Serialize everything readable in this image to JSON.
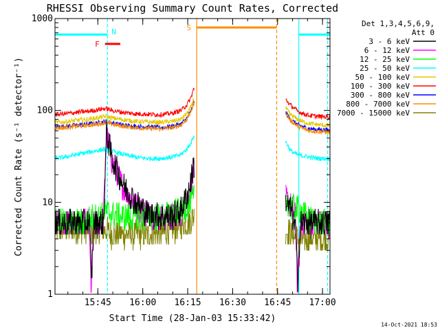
{
  "chart_data": {
    "type": "line",
    "title": "RHESSI Observing Summary Count Rates, Corrected",
    "xlabel": "Start Time (28-Jan-03 15:33:42)",
    "ylabel": "Corrected Count Rate (s⁻¹ detector⁻¹)",
    "xlim_minutes": [
      7.0,
      98.8
    ],
    "ylim": [
      1,
      1000
    ],
    "yscale": "log",
    "grid": false,
    "legend_position": "top-right",
    "x_ticks": [
      {
        "t": 21.3,
        "label": "15:45"
      },
      {
        "t": 36.3,
        "label": "16:00"
      },
      {
        "t": 51.3,
        "label": "16:15"
      },
      {
        "t": 66.3,
        "label": "16:30"
      },
      {
        "t": 81.3,
        "label": "16:45"
      },
      {
        "t": 96.3,
        "label": "17:00"
      }
    ],
    "y_ticks": [
      {
        "v": 1,
        "label": "1"
      },
      {
        "v": 10,
        "label": "10"
      },
      {
        "v": 100,
        "label": "100"
      },
      {
        "v": 1000,
        "label": "1000"
      }
    ],
    "legend_header": [
      "Det 1,3,4,5,6,9,",
      "Att 0"
    ],
    "data_gap_minutes": [
      53.5,
      84.0
    ],
    "series": [
      {
        "name": "3 - 6 keV",
        "color": "#000000",
        "t": [
          7,
          12,
          16,
          18.5,
          19.2,
          20,
          22,
          23.2,
          24.2,
          26,
          30,
          34,
          38,
          42,
          46,
          49,
          51.5,
          52.5,
          53.2,
          84.2,
          85,
          86,
          87.3,
          88,
          89,
          90,
          92,
          95,
          98.8
        ],
        "v": [
          6,
          6,
          6,
          6,
          1.5,
          6,
          6,
          6,
          60,
          30,
          15,
          10,
          7.5,
          7,
          7,
          8,
          13,
          18,
          25,
          10,
          9,
          8,
          5,
          1.5,
          6,
          6,
          6,
          6,
          6
        ]
      },
      {
        "name": "6 - 12 keV",
        "color": "#ff00ff",
        "t": [
          7,
          12,
          16,
          18.5,
          19,
          20,
          22,
          23.2,
          24.2,
          26,
          30,
          34,
          38,
          42,
          46,
          49,
          51.5,
          52.5,
          53.2,
          84.2,
          85,
          86,
          87.3,
          88,
          89,
          90,
          92,
          95,
          98.8
        ],
        "v": [
          6,
          6,
          6,
          6,
          1,
          6,
          6,
          7,
          55,
          28,
          14,
          9,
          7.5,
          7,
          7,
          7.5,
          11,
          16,
          22,
          11,
          10,
          9,
          7,
          1,
          6,
          6,
          6,
          6,
          6
        ]
      },
      {
        "name": "12 - 25 keV",
        "color": "#00ff00",
        "t": [
          7,
          12,
          16,
          20,
          22,
          24,
          26,
          30,
          34,
          38,
          42,
          46,
          49,
          51.5,
          53,
          84.2,
          86,
          88,
          90,
          92,
          95,
          98.8
        ],
        "v": [
          6,
          6,
          6,
          7,
          7,
          8,
          7.5,
          7,
          7,
          7,
          7,
          7.5,
          8,
          9,
          11,
          10,
          9,
          8.5,
          7.5,
          6.5,
          6,
          6
        ]
      },
      {
        "name": "25 - 50 keV",
        "color": "#00ffff",
        "t": [
          7,
          10,
          14,
          18,
          20,
          22,
          24,
          26,
          30,
          34,
          38,
          42,
          46,
          49,
          51,
          52.5,
          53.2,
          84.2,
          85.5,
          87,
          88,
          90,
          92,
          95,
          98.8
        ],
        "v": [
          30,
          31,
          33,
          35,
          36,
          37,
          38,
          36,
          33,
          31,
          30,
          30,
          31,
          33,
          38,
          45,
          52,
          45,
          37,
          34,
          33,
          32,
          31,
          30,
          30
        ]
      },
      {
        "name": "50 - 100 keV",
        "color": "#e6c800",
        "t": [
          7,
          10,
          14,
          18,
          20,
          22,
          24,
          26,
          30,
          34,
          38,
          42,
          46,
          49,
          51,
          52.5,
          53.2,
          84.2,
          85.5,
          87,
          88,
          90,
          92,
          95,
          98.8
        ],
        "v": [
          74,
          75,
          78,
          80,
          82,
          84,
          86,
          83,
          79,
          76,
          75,
          74,
          76,
          80,
          92,
          110,
          135,
          105,
          90,
          84,
          80,
          75,
          72,
          70,
          68
        ]
      },
      {
        "name": "100 - 300 keV",
        "color": "#ff0000",
        "t": [
          7,
          10,
          14,
          18,
          20,
          22,
          24,
          26,
          30,
          34,
          38,
          42,
          46,
          49,
          51,
          52.5,
          53.2,
          84.2,
          85.5,
          87,
          88,
          90,
          92,
          95,
          98.8
        ],
        "v": [
          90,
          92,
          95,
          98,
          100,
          103,
          105,
          100,
          95,
          92,
          91,
          90,
          93,
          100,
          115,
          140,
          170,
          130,
          115,
          105,
          98,
          92,
          88,
          86,
          85
        ]
      },
      {
        "name": "300 - 800 keV",
        "color": "#0000ff",
        "t": [
          7,
          10,
          14,
          18,
          20,
          22,
          24,
          26,
          30,
          34,
          38,
          42,
          46,
          49,
          51,
          52.5,
          53.2,
          84.2,
          85.5,
          87,
          88,
          90,
          92,
          95,
          98.8
        ],
        "v": [
          66,
          67,
          69,
          71,
          72,
          74,
          76,
          73,
          69,
          67,
          66,
          65,
          67,
          71,
          82,
          100,
          120,
          95,
          80,
          74,
          70,
          66,
          63,
          62,
          61
        ]
      },
      {
        "name": "800 - 7000 keV",
        "color": "#ff8c00",
        "t": [
          7,
          10,
          14,
          18,
          20,
          22,
          24,
          26,
          30,
          34,
          38,
          42,
          46,
          49,
          51,
          52.5,
          53.2,
          84.2,
          85.5,
          87,
          88,
          90,
          92,
          95,
          98.8
        ],
        "v": [
          64,
          65,
          67,
          69,
          70,
          72,
          74,
          71,
          67,
          65,
          64,
          63,
          65,
          69,
          80,
          98,
          118,
          93,
          78,
          72,
          67,
          63,
          60,
          59,
          58
        ]
      },
      {
        "name": "7000 - 15000 keV",
        "color": "#808000",
        "t": [
          7,
          12,
          16,
          20,
          22,
          24,
          26,
          30,
          34,
          38,
          42,
          46,
          49,
          51.5,
          53,
          84.2,
          86,
          88,
          90,
          92,
          95,
          98.8
        ],
        "v": [
          5,
          5,
          5,
          5,
          5,
          5,
          4.5,
          4.5,
          4.5,
          4.5,
          4.5,
          5,
          5.5,
          6,
          7,
          5,
          4.5,
          4,
          4,
          4,
          4,
          4
        ]
      }
    ],
    "flag_bars": [
      {
        "label": "",
        "color": "#00ffff",
        "t_start": 7,
        "t_end": 24.5,
        "level": 670
      },
      {
        "label": "N",
        "color": "#00ffff",
        "t_start": 24.5,
        "t_end": 24.5,
        "level": 670
      },
      {
        "label": "F",
        "color": "#ff0000",
        "t_start": 23.7,
        "t_end": 28.8,
        "level": 530
      },
      {
        "label": "S",
        "color": "#ff8c00",
        "t_start": 54.3,
        "t_end": 80.9,
        "level": 800
      },
      {
        "label": "",
        "color": "#00ffff",
        "t_start": 88.4,
        "t_end": 98.8,
        "level": 670
      }
    ],
    "vertical_lines": [
      {
        "t": 24.5,
        "color": "#00ffff",
        "style": "dashed"
      },
      {
        "t": 54.3,
        "color": "#ff8c00",
        "style": "solid"
      },
      {
        "t": 81.0,
        "color": "#ff8c00",
        "style": "dashed"
      },
      {
        "t": 88.4,
        "color": "#00ffff",
        "style": "solid"
      },
      {
        "t": 98.0,
        "color": "#00ffff",
        "style": "dashed"
      }
    ],
    "footer_timestamp": "14-Oct-2021 18:53"
  }
}
